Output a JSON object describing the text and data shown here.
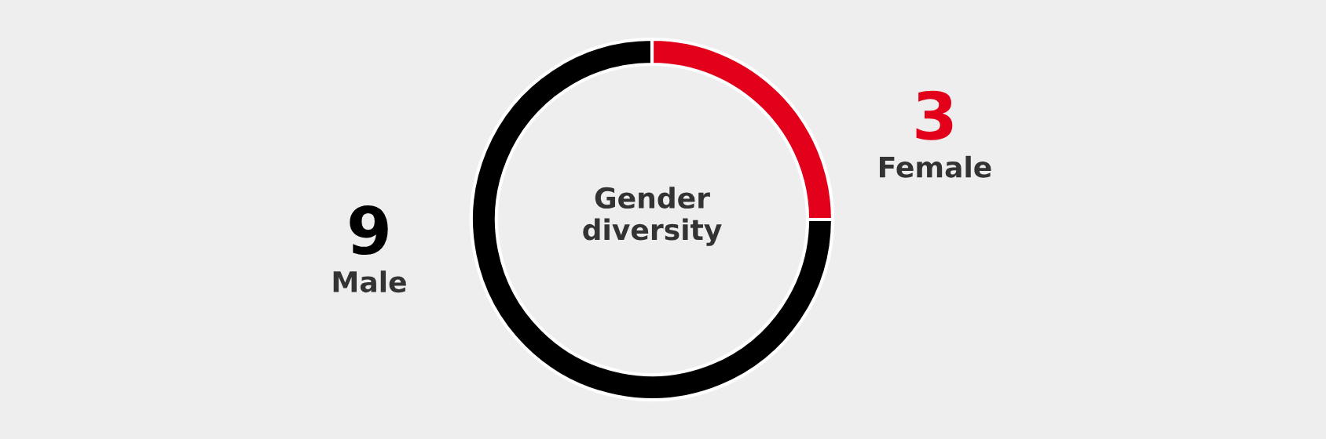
{
  "chart_data": {
    "type": "donut",
    "title": "Gender diversity",
    "categories": [
      "Female",
      "Male"
    ],
    "values": [
      3,
      9
    ],
    "colors": [
      "#e2001a",
      "#000000"
    ],
    "data_labels": true,
    "legend": false
  }
}
